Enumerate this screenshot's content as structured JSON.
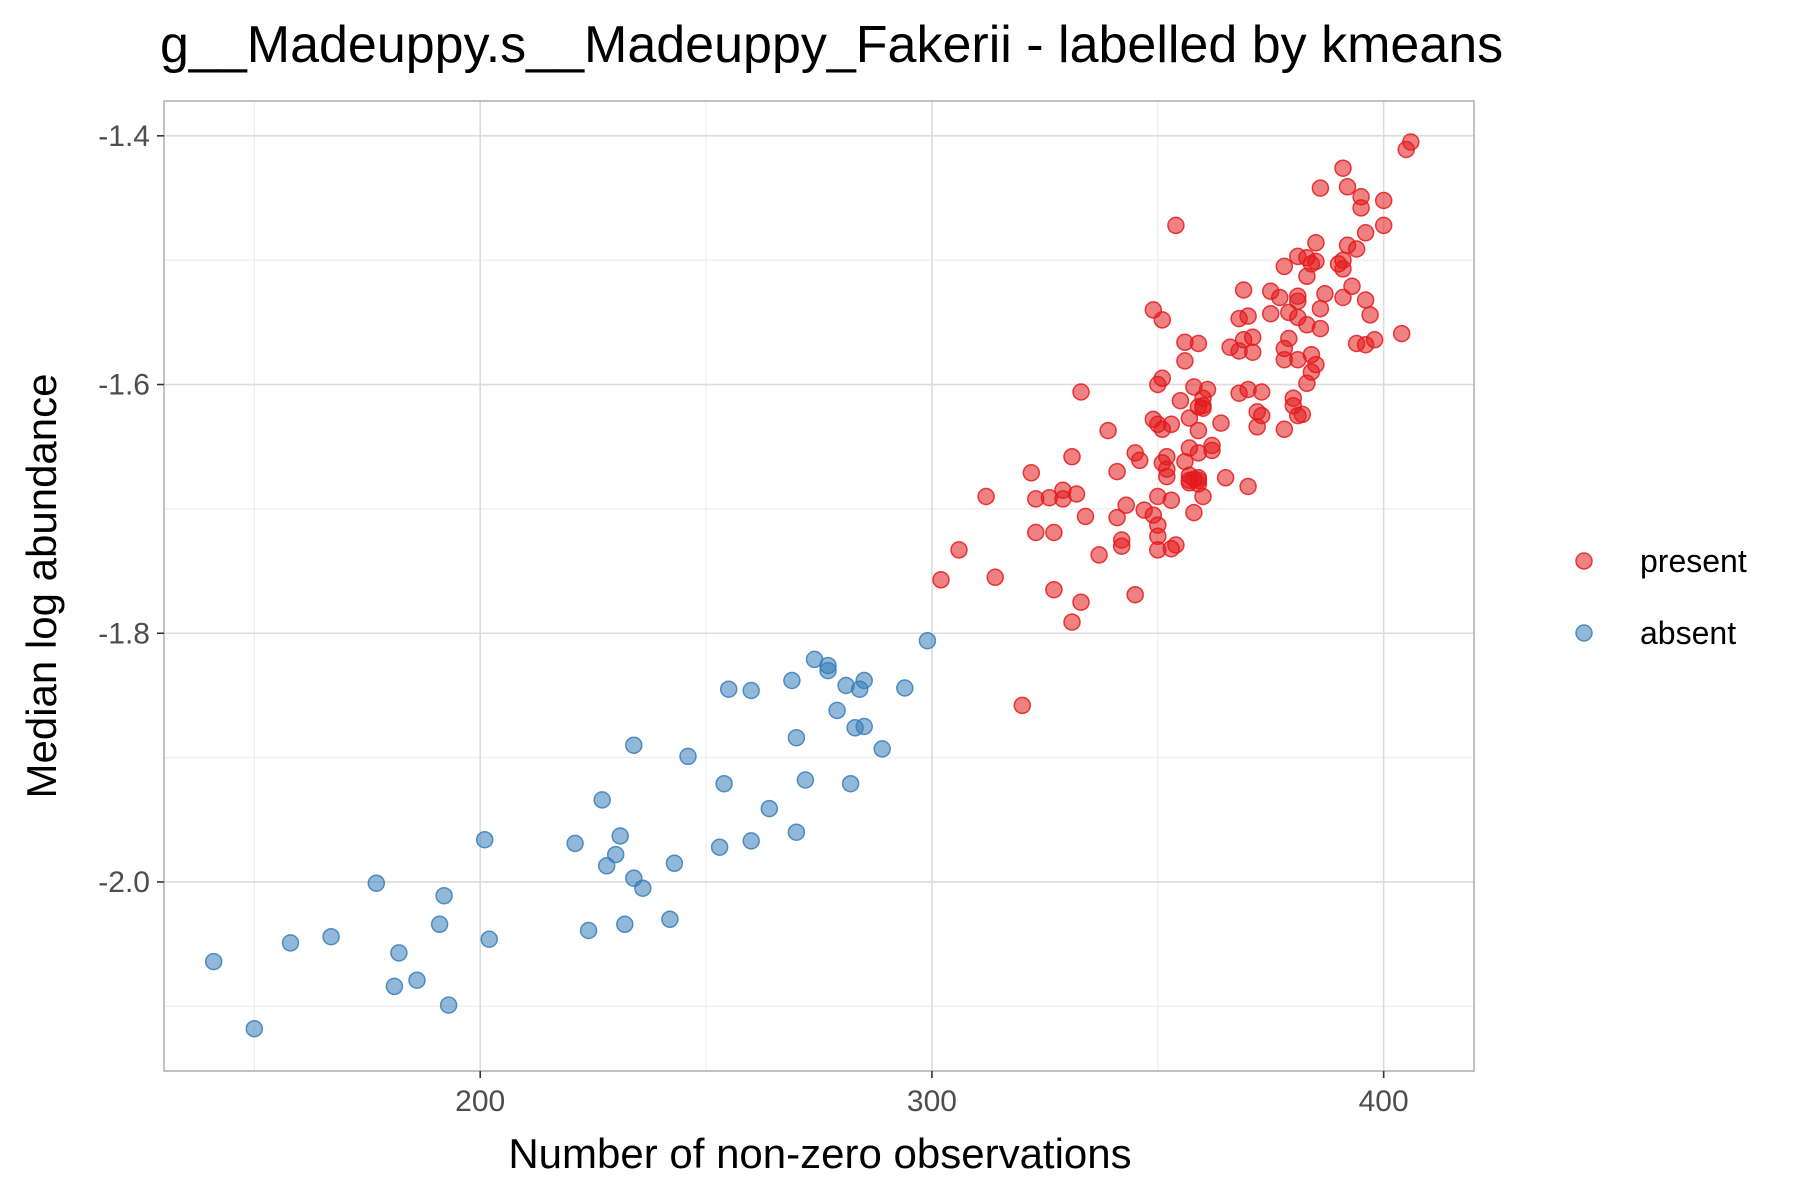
{
  "chart_data": {
    "type": "scatter",
    "title": "g__Madeuppy.s__Madeuppy_Fakerii - labelled by kmeans",
    "xlabel": "Number of non-zero observations",
    "ylabel": "Median log abundance",
    "xlim": [
      130,
      420
    ],
    "ylim": [
      -2.152,
      -1.372
    ],
    "x_ticks": [
      200,
      300,
      400
    ],
    "y_ticks": [
      -2.0,
      -1.8,
      -1.6,
      -1.4
    ],
    "x_tick_labels": [
      "200",
      "300",
      "400"
    ],
    "y_tick_labels": [
      "-2.0",
      "-1.8",
      "-1.6",
      "-1.4"
    ],
    "grid": true,
    "legend_position": "right",
    "series": [
      {
        "name": "present",
        "color": "#e41a1c",
        "points": [
          [
            406,
            -1.405
          ],
          [
            405,
            -1.411
          ],
          [
            391,
            -1.426
          ],
          [
            386,
            -1.442
          ],
          [
            392,
            -1.441
          ],
          [
            400,
            -1.452
          ],
          [
            395,
            -1.449
          ],
          [
            395,
            -1.458
          ],
          [
            354,
            -1.472
          ],
          [
            400,
            -1.472
          ],
          [
            396,
            -1.478
          ],
          [
            385,
            -1.486
          ],
          [
            394,
            -1.491
          ],
          [
            392,
            -1.488
          ],
          [
            381,
            -1.497
          ],
          [
            383,
            -1.498
          ],
          [
            391,
            -1.5
          ],
          [
            385,
            -1.501
          ],
          [
            390,
            -1.503
          ],
          [
            378,
            -1.505
          ],
          [
            384,
            -1.503
          ],
          [
            391,
            -1.507
          ],
          [
            383,
            -1.513
          ],
          [
            393,
            -1.521
          ],
          [
            369,
            -1.524
          ],
          [
            375,
            -1.525
          ],
          [
            387,
            -1.527
          ],
          [
            381,
            -1.529
          ],
          [
            377,
            -1.53
          ],
          [
            396,
            -1.532
          ],
          [
            381,
            -1.533
          ],
          [
            391,
            -1.53
          ],
          [
            386,
            -1.539
          ],
          [
            349,
            -1.54
          ],
          [
            379,
            -1.542
          ],
          [
            375,
            -1.543
          ],
          [
            370,
            -1.545
          ],
          [
            397,
            -1.544
          ],
          [
            368,
            -1.547
          ],
          [
            381,
            -1.546
          ],
          [
            351,
            -1.548
          ],
          [
            383,
            -1.552
          ],
          [
            386,
            -1.555
          ],
          [
            369,
            -1.564
          ],
          [
            371,
            -1.562
          ],
          [
            379,
            -1.563
          ],
          [
            398,
            -1.564
          ],
          [
            356,
            -1.566
          ],
          [
            366,
            -1.57
          ],
          [
            359,
            -1.567
          ],
          [
            394,
            -1.567
          ],
          [
            396,
            -1.568
          ],
          [
            368,
            -1.573
          ],
          [
            404,
            -1.559
          ],
          [
            378,
            -1.571
          ],
          [
            371,
            -1.574
          ],
          [
            384,
            -1.576
          ],
          [
            381,
            -1.58
          ],
          [
            378,
            -1.58
          ],
          [
            356,
            -1.581
          ],
          [
            385,
            -1.584
          ],
          [
            384,
            -1.59
          ],
          [
            351,
            -1.595
          ],
          [
            350,
            -1.6
          ],
          [
            383,
            -1.599
          ],
          [
            358,
            -1.602
          ],
          [
            370,
            -1.604
          ],
          [
            373,
            -1.606
          ],
          [
            361,
            -1.604
          ],
          [
            333,
            -1.606
          ],
          [
            368,
            -1.607
          ],
          [
            380,
            -1.611
          ],
          [
            380,
            -1.617
          ],
          [
            382,
            -1.624
          ],
          [
            360,
            -1.611
          ],
          [
            355,
            -1.613
          ],
          [
            360,
            -1.617
          ],
          [
            359,
            -1.618
          ],
          [
            360,
            -1.619
          ],
          [
            381,
            -1.625
          ],
          [
            372,
            -1.622
          ],
          [
            373,
            -1.625
          ],
          [
            357,
            -1.627
          ],
          [
            353,
            -1.632
          ],
          [
            349,
            -1.628
          ],
          [
            350,
            -1.632
          ],
          [
            364,
            -1.631
          ],
          [
            372,
            -1.634
          ],
          [
            378,
            -1.636
          ],
          [
            351,
            -1.636
          ],
          [
            339,
            -1.637
          ],
          [
            359,
            -1.637
          ],
          [
            362,
            -1.649
          ],
          [
            362,
            -1.653
          ],
          [
            359,
            -1.655
          ],
          [
            357,
            -1.651
          ],
          [
            345,
            -1.655
          ],
          [
            331,
            -1.658
          ],
          [
            346,
            -1.661
          ],
          [
            352,
            -1.658
          ],
          [
            351,
            -1.663
          ],
          [
            352,
            -1.668
          ],
          [
            356,
            -1.662
          ],
          [
            341,
            -1.67
          ],
          [
            322,
            -1.671
          ],
          [
            352,
            -1.674
          ],
          [
            357,
            -1.673
          ],
          [
            357,
            -1.679
          ],
          [
            358,
            -1.676
          ],
          [
            359,
            -1.677
          ],
          [
            359,
            -1.68
          ],
          [
            365,
            -1.675
          ],
          [
            357,
            -1.677
          ],
          [
            359,
            -1.675
          ],
          [
            370,
            -1.682
          ],
          [
            329,
            -1.685
          ],
          [
            332,
            -1.688
          ],
          [
            323,
            -1.692
          ],
          [
            326,
            -1.691
          ],
          [
            329,
            -1.692
          ],
          [
            312,
            -1.69
          ],
          [
            350,
            -1.69
          ],
          [
            353,
            -1.693
          ],
          [
            360,
            -1.69
          ],
          [
            343,
            -1.697
          ],
          [
            347,
            -1.701
          ],
          [
            349,
            -1.705
          ],
          [
            358,
            -1.703
          ],
          [
            334,
            -1.706
          ],
          [
            341,
            -1.707
          ],
          [
            350,
            -1.713
          ],
          [
            323,
            -1.719
          ],
          [
            327,
            -1.719
          ],
          [
            350,
            -1.722
          ],
          [
            354,
            -1.729
          ],
          [
            342,
            -1.725
          ],
          [
            342,
            -1.73
          ],
          [
            350,
            -1.733
          ],
          [
            353,
            -1.732
          ],
          [
            306,
            -1.733
          ],
          [
            337,
            -1.737
          ],
          [
            302,
            -1.757
          ],
          [
            314,
            -1.755
          ],
          [
            327,
            -1.765
          ],
          [
            345,
            -1.769
          ],
          [
            333,
            -1.775
          ],
          [
            331,
            -1.791
          ],
          [
            320,
            -1.858
          ]
        ]
      },
      {
        "name": "absent",
        "color": "#377eb8",
        "points": [
          [
            299,
            -1.806
          ],
          [
            274,
            -1.821
          ],
          [
            277,
            -1.826
          ],
          [
            277,
            -1.83
          ],
          [
            269,
            -1.838
          ],
          [
            285,
            -1.838
          ],
          [
            281,
            -1.842
          ],
          [
            255,
            -1.845
          ],
          [
            260,
            -1.846
          ],
          [
            294,
            -1.844
          ],
          [
            284,
            -1.845
          ],
          [
            279,
            -1.862
          ],
          [
            283,
            -1.876
          ],
          [
            285,
            -1.875
          ],
          [
            270,
            -1.884
          ],
          [
            289,
            -1.893
          ],
          [
            234,
            -1.89
          ],
          [
            246,
            -1.899
          ],
          [
            272,
            -1.918
          ],
          [
            254,
            -1.921
          ],
          [
            282,
            -1.921
          ],
          [
            227,
            -1.934
          ],
          [
            264,
            -1.941
          ],
          [
            270,
            -1.96
          ],
          [
            231,
            -1.963
          ],
          [
            201,
            -1.966
          ],
          [
            221,
            -1.969
          ],
          [
            260,
            -1.967
          ],
          [
            253,
            -1.972
          ],
          [
            230,
            -1.978
          ],
          [
            228,
            -1.987
          ],
          [
            243,
            -1.985
          ],
          [
            234,
            -1.997
          ],
          [
            236,
            -2.005
          ],
          [
            177,
            -2.001
          ],
          [
            192,
            -2.011
          ],
          [
            224,
            -2.039
          ],
          [
            232,
            -2.034
          ],
          [
            242,
            -2.03
          ],
          [
            191,
            -2.034
          ],
          [
            202,
            -2.046
          ],
          [
            167,
            -2.044
          ],
          [
            158,
            -2.049
          ],
          [
            182,
            -2.057
          ],
          [
            186,
            -2.079
          ],
          [
            181,
            -2.084
          ],
          [
            141,
            -2.064
          ],
          [
            193,
            -2.099
          ],
          [
            150,
            -2.118
          ]
        ]
      }
    ]
  }
}
